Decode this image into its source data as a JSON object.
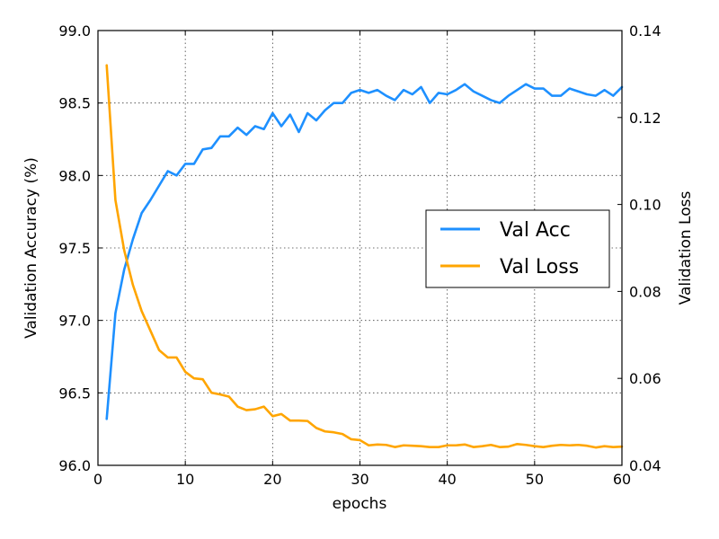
{
  "chart_data": {
    "type": "line",
    "xlabel": "epochs",
    "ylabel_left": "Validation Accuracy (%)",
    "ylabel_right": "Validation Loss",
    "xlim": [
      0,
      60
    ],
    "ylim_left": [
      96.0,
      99.0
    ],
    "ylim_right": [
      0.04,
      0.14
    ],
    "x_ticks": [
      "0",
      "10",
      "20",
      "30",
      "40",
      "50",
      "60"
    ],
    "y_left_ticks": [
      "96.0",
      "96.5",
      "97.0",
      "97.5",
      "98.0",
      "98.5",
      "99.0"
    ],
    "y_right_ticks": [
      "0.04",
      "0.06",
      "0.08",
      "0.10",
      "0.12",
      "0.14"
    ],
    "grid": true,
    "legend_placement": "center-right",
    "x": [
      1,
      2,
      3,
      4,
      5,
      6,
      7,
      8,
      9,
      10,
      11,
      12,
      13,
      14,
      15,
      16,
      17,
      18,
      19,
      20,
      21,
      22,
      23,
      24,
      25,
      26,
      27,
      28,
      29,
      30,
      31,
      32,
      33,
      34,
      35,
      36,
      37,
      38,
      39,
      40,
      41,
      42,
      43,
      44,
      45,
      46,
      47,
      48,
      49,
      50,
      51,
      52,
      53,
      54,
      55,
      56,
      57,
      58,
      59,
      60
    ],
    "series": [
      {
        "name": "Val Acc",
        "axis": "left",
        "color": "#1e90ff",
        "values": [
          96.32,
          97.05,
          97.35,
          97.56,
          97.74,
          97.83,
          97.93,
          98.03,
          98.0,
          98.08,
          98.08,
          98.18,
          98.19,
          98.27,
          98.27,
          98.33,
          98.28,
          98.34,
          98.32,
          98.43,
          98.34,
          98.42,
          98.3,
          98.43,
          98.38,
          98.45,
          98.5,
          98.5,
          98.57,
          98.59,
          98.57,
          98.59,
          98.55,
          98.52,
          98.59,
          98.56,
          98.61,
          98.5,
          98.57,
          98.56,
          98.59,
          98.63,
          98.58,
          98.55,
          98.52,
          98.5,
          98.55,
          98.59,
          98.63,
          98.6,
          98.6,
          98.55,
          98.55,
          98.6,
          98.58,
          98.56,
          98.55,
          98.59,
          98.55,
          98.61
        ]
      },
      {
        "name": "Val Loss",
        "axis": "right",
        "color": "#ffa500",
        "values": [
          0.132,
          0.101,
          0.0895,
          0.0815,
          0.0755,
          0.071,
          0.0665,
          0.0648,
          0.0648,
          0.0615,
          0.06,
          0.0598,
          0.0567,
          0.0563,
          0.0558,
          0.0535,
          0.0527,
          0.0529,
          0.0535,
          0.0513,
          0.0518,
          0.0503,
          0.0503,
          0.0502,
          0.0486,
          0.0478,
          0.0476,
          0.0472,
          0.046,
          0.0458,
          0.0446,
          0.0448,
          0.0447,
          0.0442,
          0.0446,
          0.0445,
          0.0444,
          0.0442,
          0.0442,
          0.0446,
          0.0446,
          0.0448,
          0.0442,
          0.0444,
          0.0447,
          0.0442,
          0.0443,
          0.0449,
          0.0447,
          0.0444,
          0.0442,
          0.0445,
          0.0447,
          0.0446,
          0.0447,
          0.0445,
          0.0441,
          0.0444,
          0.0442,
          0.0443
        ]
      }
    ]
  }
}
